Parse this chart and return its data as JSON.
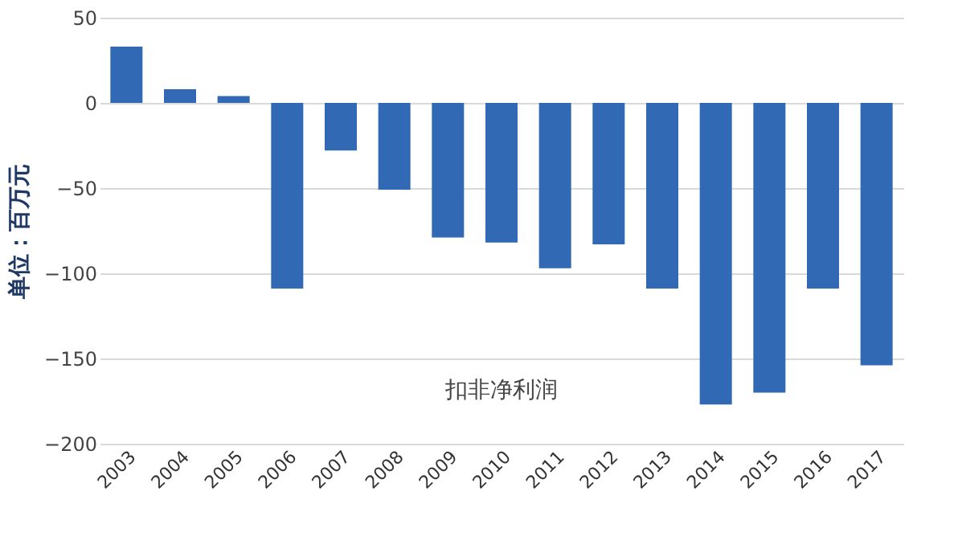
{
  "chart_data": {
    "type": "bar",
    "categories": [
      "2003",
      "2004",
      "2005",
      "2006",
      "2007",
      "2008",
      "2009",
      "2010",
      "2011",
      "2012",
      "2013",
      "2014",
      "2015",
      "2016",
      "2017"
    ],
    "values": [
      33,
      8,
      4,
      -109,
      -28,
      -51,
      -79,
      -82,
      -97,
      -83,
      -109,
      -177,
      -170,
      -109,
      -154
    ],
    "color": "#3169b5",
    "ylabel": "单位：百万元",
    "annotations": [
      "扣非净利润"
    ],
    "ylim": [
      -200,
      50
    ],
    "yticks": [
      -200,
      -150,
      -100,
      -50,
      0,
      50
    ],
    "grid": "y"
  }
}
